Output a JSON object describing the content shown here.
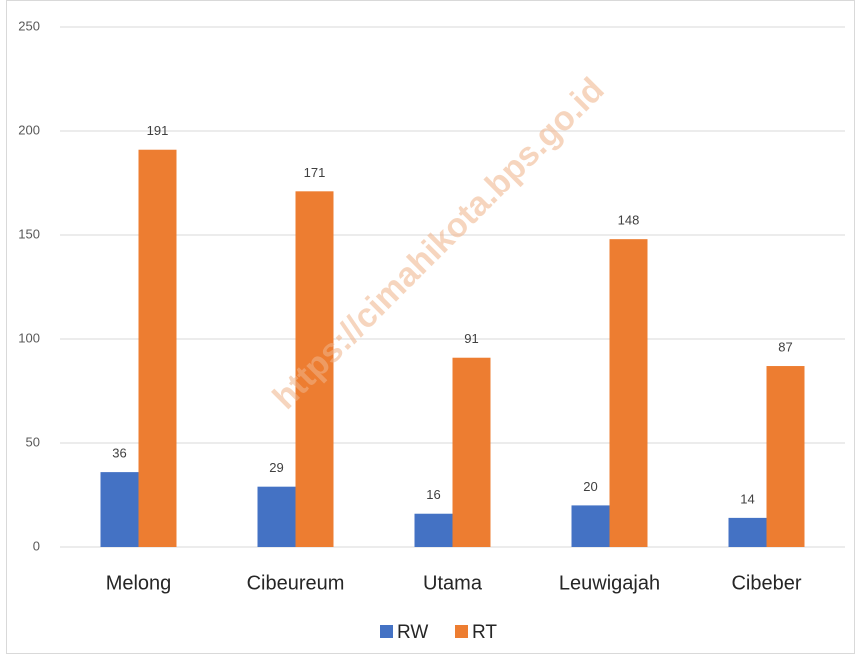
{
  "chart_data": {
    "type": "bar",
    "categories": [
      "Melong",
      "Cibeureum",
      "Utama",
      "Leuwigajah",
      "Cibeber"
    ],
    "series": [
      {
        "name": "RW",
        "color": "#4472c4",
        "values": [
          36,
          29,
          16,
          20,
          14
        ]
      },
      {
        "name": "RT",
        "color": "#ed7d31",
        "values": [
          191,
          171,
          91,
          148,
          87
        ]
      }
    ],
    "ylim": [
      0,
      250
    ],
    "yticks": [
      0,
      50,
      100,
      150,
      200,
      250
    ],
    "grid": true,
    "legend": "bottom",
    "watermark": "https://cimahikota.bps.go.id"
  }
}
